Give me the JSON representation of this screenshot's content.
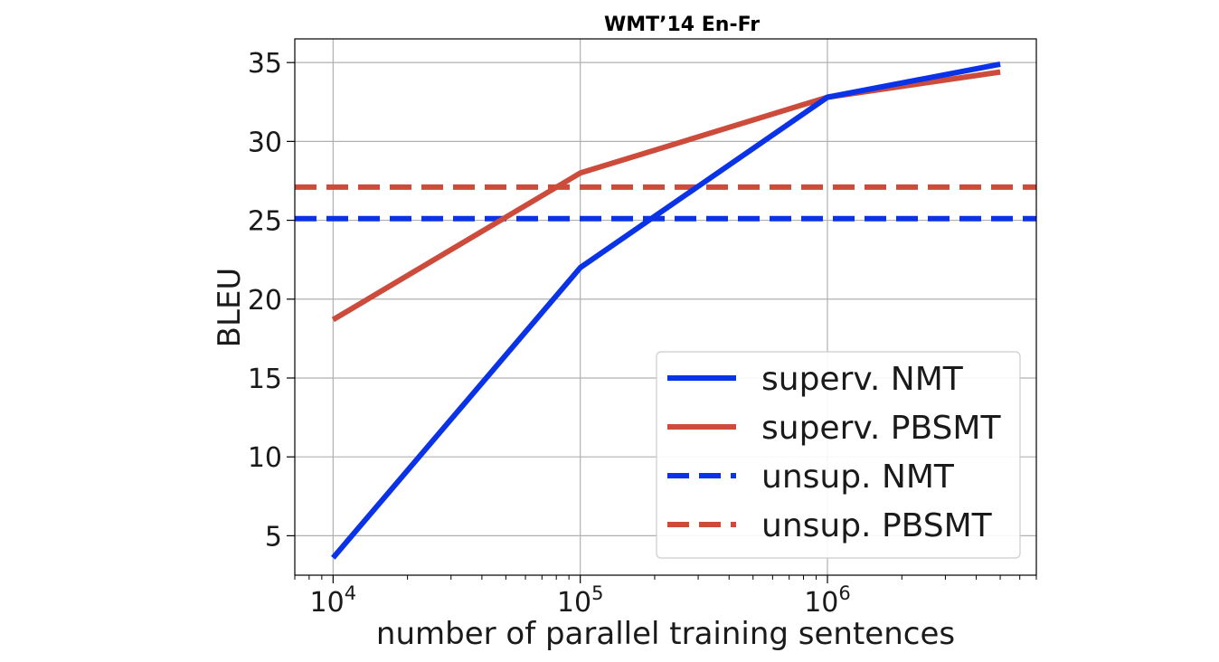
{
  "chart_data": {
    "type": "line",
    "title": "WMT’14 En-Fr",
    "xlabel": "number of parallel training sentences",
    "ylabel": "BLEU",
    "xscale": "log",
    "xlim": [
      7000,
      7000000
    ],
    "ylim": [
      2.5,
      36.5
    ],
    "x_ticks": [
      {
        "value": 10000,
        "base": "10",
        "exp": "4"
      },
      {
        "value": 100000,
        "base": "10",
        "exp": "5"
      },
      {
        "value": 1000000,
        "base": "10",
        "exp": "6"
      }
    ],
    "y_ticks": [
      5,
      10,
      15,
      20,
      25,
      30,
      35
    ],
    "grid": true,
    "legend_position": "lower right",
    "series": [
      {
        "name": "superv. NMT",
        "color": "#0a33e8",
        "style": "solid",
        "x": [
          10000,
          100000,
          1000000,
          5000000
        ],
        "y": [
          3.6,
          22.0,
          32.8,
          34.9
        ]
      },
      {
        "name": "superv. PBSMT",
        "color": "#cc4b3b",
        "style": "solid",
        "x": [
          10000,
          100000,
          1000000,
          5000000
        ],
        "y": [
          18.7,
          28.0,
          32.8,
          34.4
        ]
      },
      {
        "name": "unsup. NMT",
        "color": "#0a33e8",
        "style": "dashed",
        "x": [
          7000,
          7000000
        ],
        "y": [
          25.1,
          25.1
        ]
      },
      {
        "name": "unsup. PBSMT",
        "color": "#cc4b3b",
        "style": "dashed",
        "x": [
          7000,
          7000000
        ],
        "y": [
          27.1,
          27.1
        ]
      }
    ]
  }
}
